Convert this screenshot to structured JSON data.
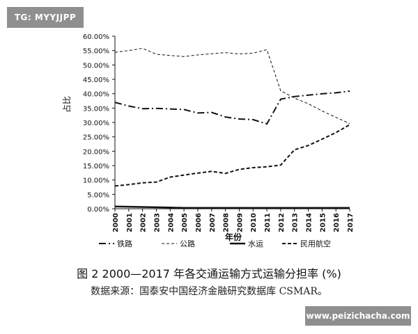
{
  "watermarks": {
    "top_left": "TG: MYYJJPP",
    "bottom_right": "www.peizichacha.com"
  },
  "figure": {
    "title": "图 2   2000—2017 年各交通运输方式运输分担率 (%)",
    "source": "数据来源：国泰安中国经济金融研究数据库 CSMAR。"
  },
  "colors": {
    "line": "#111111",
    "axis": "#111111",
    "background": "#ffffff",
    "watermark": "#8f8f8f"
  },
  "chart_data": {
    "type": "line",
    "title": "",
    "xlabel": "年份",
    "ylabel": "占比",
    "ylim": [
      0,
      60
    ],
    "yticks": [
      "0.00%",
      "5.00%",
      "10.00%",
      "15.00%",
      "20.00%",
      "25.00%",
      "30.00%",
      "35.00%",
      "40.00%",
      "45.00%",
      "50.00%",
      "55.00%",
      "60.00%"
    ],
    "x": [
      "2000",
      "2001",
      "2002",
      "2003",
      "2004",
      "2005",
      "2006",
      "2007",
      "2008",
      "2009",
      "2010",
      "2011",
      "2012",
      "2013",
      "2014",
      "2015",
      "2016",
      "2017"
    ],
    "grid": false,
    "legend_position": "bottom",
    "series": [
      {
        "name": "铁路",
        "style": "dash-dot",
        "values": [
          37.0,
          35.7,
          34.8,
          34.9,
          34.7,
          34.5,
          33.3,
          33.5,
          31.9,
          31.2,
          31.0,
          29.5,
          38.1,
          39.0,
          39.5,
          40.0,
          40.3,
          40.9
        ]
      },
      {
        "name": "公路",
        "style": "dashed",
        "values": [
          54.4,
          55.0,
          55.8,
          53.7,
          53.3,
          52.9,
          53.5,
          53.9,
          54.3,
          53.8,
          54.1,
          55.3,
          41.0,
          38.5,
          36.5,
          34.0,
          31.8,
          29.6
        ]
      },
      {
        "name": "水运",
        "style": "solid",
        "values": [
          0.8,
          0.7,
          0.6,
          0.5,
          0.4,
          0.3,
          0.3,
          0.3,
          0.3,
          0.3,
          0.3,
          0.3,
          0.3,
          0.3,
          0.3,
          0.3,
          0.3,
          0.3
        ]
      },
      {
        "name": "民用航空",
        "style": "dashed-thick",
        "values": [
          7.9,
          8.4,
          9.0,
          9.3,
          11.0,
          11.7,
          12.4,
          13.0,
          12.3,
          13.7,
          14.3,
          14.6,
          15.2,
          20.5,
          22.0,
          24.2,
          26.5,
          29.2
        ]
      }
    ]
  }
}
